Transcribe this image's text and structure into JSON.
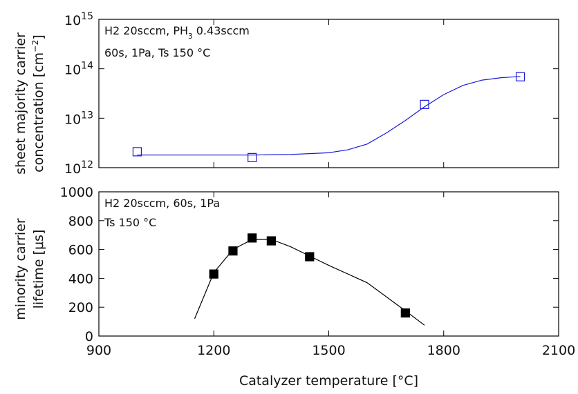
{
  "chart_data": [
    {
      "type": "scatter",
      "ylabel": [
        [
          {
            "text": "sheet majority carrier"
          }
        ],
        [
          {
            "text": "concentration [cm"
          },
          {
            "text": "−2",
            "sup": true
          },
          {
            "text": "]"
          }
        ]
      ],
      "annotations": [
        [
          {
            "text": "H2 20sccm, PH"
          },
          {
            "text": "3",
            "sub": true
          },
          {
            "text": " 0.43sccm"
          }
        ],
        [
          {
            "text": "60s, 1Pa, Ts 150 °C"
          }
        ]
      ],
      "xlim": [
        900,
        2100
      ],
      "xticks": [
        900,
        1200,
        1500,
        1800,
        2100
      ],
      "xtick_labels": false,
      "ylim": [
        1000000000000.0,
        1000000000000000.0
      ],
      "log_y": true,
      "yticks": [
        {
          "value": 1000000000000.0,
          "label": "10",
          "sup": "12"
        },
        {
          "value": 10000000000000.0,
          "label": "10",
          "sup": "13"
        },
        {
          "value": 100000000000000.0,
          "label": "10",
          "sup": "14"
        },
        {
          "value": 1000000000000000.0,
          "label": "10",
          "sup": "15"
        }
      ],
      "series": [
        {
          "color": "#1a1adc",
          "marker": "open-square",
          "x": [
            1000,
            1300,
            1750,
            2000
          ],
          "values": [
            2100000000000.0,
            1600000000000.0,
            19000000000000.0,
            69000000000000.0
          ]
        },
        {
          "color": "#1a1adc",
          "marker": "line",
          "x": [
            1000,
            1300,
            1400,
            1500,
            1550,
            1600,
            1650,
            1700,
            1750,
            1800,
            1850,
            1900,
            1950,
            2000
          ],
          "values": [
            1800000000000.0,
            1800000000000.0,
            1850000000000.0,
            2000000000000.0,
            2300000000000.0,
            3000000000000.0,
            5000000000000.0,
            9000000000000.0,
            17000000000000.0,
            30000000000000.0,
            46000000000000.0,
            59000000000000.0,
            66000000000000.0,
            70000000000000.0
          ]
        }
      ]
    },
    {
      "type": "scatter",
      "ylabel": [
        [
          {
            "text": "minority carrier"
          }
        ],
        [
          {
            "text": "lifetime [μs]"
          }
        ]
      ],
      "xlabel": "Catalyzer temperature [°C]",
      "annotations": [
        [
          {
            "text": "H2 20sccm, 60s, 1Pa"
          }
        ],
        [
          {
            "text": "Ts 150 °C"
          }
        ]
      ],
      "xlim": [
        900,
        2100
      ],
      "xticks": [
        900,
        1200,
        1500,
        1800,
        2100
      ],
      "xtick_labels": true,
      "ylim": [
        0,
        1000
      ],
      "log_y": false,
      "yticks": [
        0,
        200,
        400,
        600,
        800,
        1000
      ],
      "series": [
        {
          "color": "#000000",
          "marker": "filled-square",
          "x": [
            1200,
            1250,
            1300,
            1350,
            1450,
            1700
          ],
          "values": [
            430,
            590,
            680,
            660,
            550,
            160
          ]
        },
        {
          "color": "#000000",
          "marker": "line",
          "x": [
            1150,
            1200,
            1250,
            1300,
            1350,
            1400,
            1450,
            1500,
            1600,
            1700,
            1750
          ],
          "values": [
            120,
            440,
            600,
            670,
            670,
            620,
            555,
            490,
            370,
            175,
            75
          ]
        }
      ]
    }
  ]
}
